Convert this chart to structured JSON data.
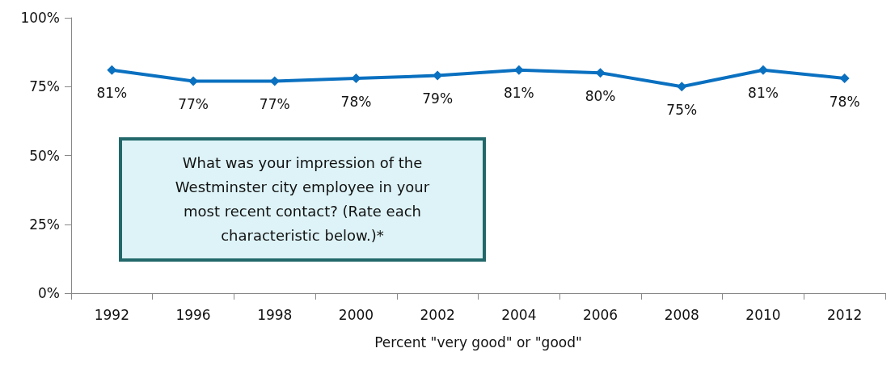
{
  "chart_data": {
    "type": "line",
    "xlabel": "Percent \"very good\" or \"good\"",
    "categories": [
      "1992",
      "1996",
      "1998",
      "2000",
      "2002",
      "2004",
      "2006",
      "2008",
      "2010",
      "2012"
    ],
    "series": [
      {
        "color": "#0a70c0",
        "values": [
          81,
          77,
          77,
          78,
          79,
          81,
          80,
          75,
          81,
          78
        ],
        "value_labels": [
          "81%",
          "77%",
          "77%",
          "78%",
          "79%",
          "81%",
          "80%",
          "75%",
          "81%",
          "78%"
        ]
      }
    ],
    "ylim": [
      0,
      100
    ],
    "yticks": [
      {
        "value": 0,
        "label": "0%"
      },
      {
        "value": 25,
        "label": "25%"
      },
      {
        "value": 50,
        "label": "50%"
      },
      {
        "value": 75,
        "label": "75%"
      },
      {
        "value": 100,
        "label": "100%"
      }
    ],
    "marker": "diamond",
    "grid": false,
    "annotations": [
      "What was your impression of the Westminster city employee in your most recent contact? (Rate each characteristic below.)*"
    ]
  }
}
